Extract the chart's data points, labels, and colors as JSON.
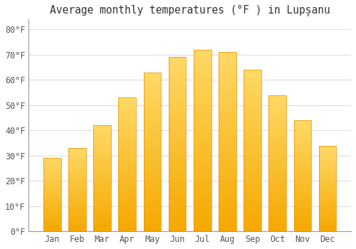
{
  "title": "Average monthly temperatures (°F ) in Lupșanu",
  "months": [
    "Jan",
    "Feb",
    "Mar",
    "Apr",
    "May",
    "Jun",
    "Jul",
    "Aug",
    "Sep",
    "Oct",
    "Nov",
    "Dec"
  ],
  "values": [
    29,
    33,
    42,
    53,
    63,
    69,
    72,
    71,
    64,
    54,
    44,
    34
  ],
  "bar_color_bottom": "#F5A800",
  "bar_color_top": "#FFD966",
  "background_color": "#FFFFFF",
  "grid_color": "#DDDDDD",
  "title_fontsize": 10.5,
  "tick_fontsize": 8.5,
  "ylim": [
    0,
    84
  ],
  "yticks": [
    0,
    10,
    20,
    30,
    40,
    50,
    60,
    70,
    80
  ],
  "ylabel_fmt": "°F"
}
